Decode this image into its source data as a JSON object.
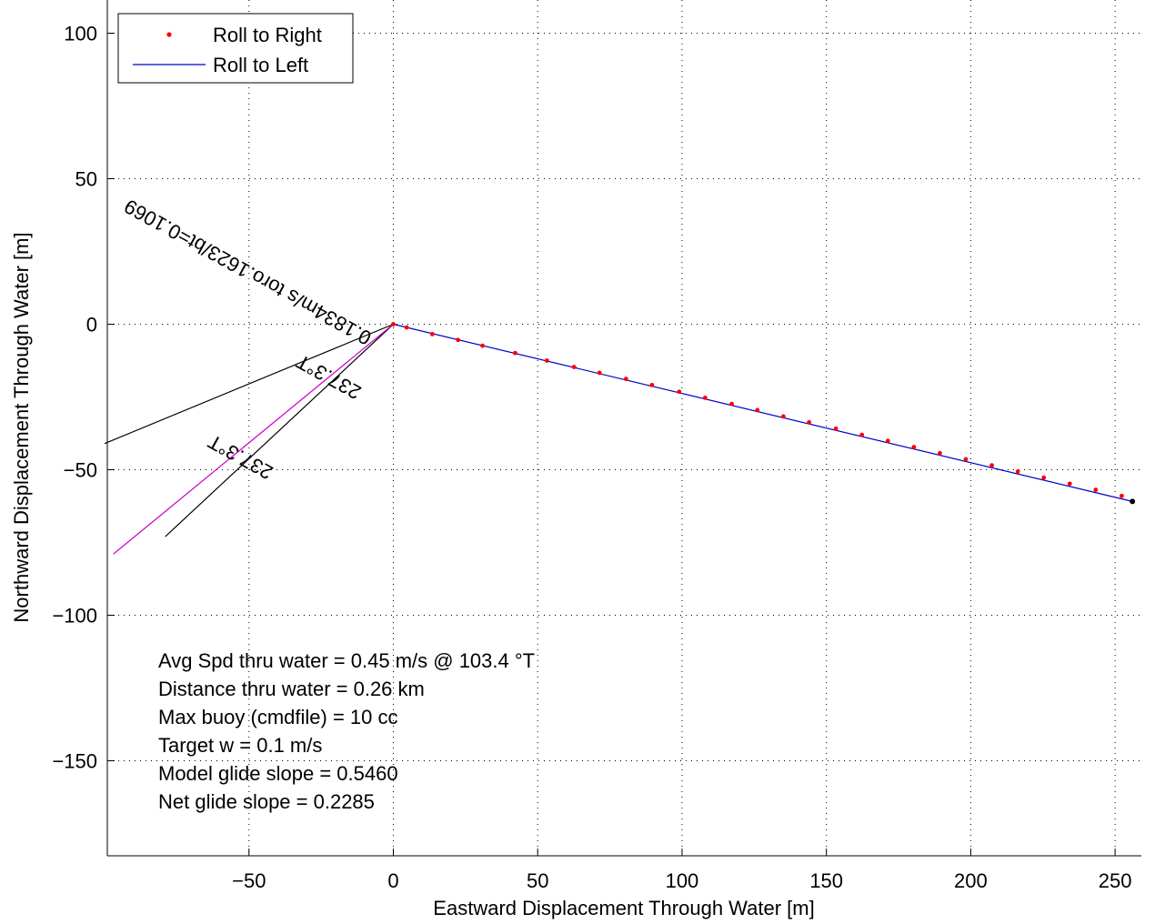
{
  "chart_data": {
    "type": "line",
    "xlabel": "Eastward Displacement Through Water [m]",
    "ylabel": "Northward Displacement Through Water [m]",
    "xlim": [
      -100,
      256
    ],
    "ylim": [
      -182,
      111
    ],
    "x_ticks": [
      -50,
      0,
      50,
      100,
      150,
      200,
      250
    ],
    "x_tick_labels": [
      "−50",
      "0",
      "50",
      "100",
      "150",
      "200",
      "250"
    ],
    "y_ticks": [
      100,
      50,
      0,
      -50,
      -100,
      -150
    ],
    "y_tick_labels": [
      "100",
      "50",
      "0",
      "−50",
      "−100",
      "−150"
    ],
    "grid": true,
    "legend_placement": "top-left",
    "series": [
      {
        "name": "Roll to Right",
        "style": "markers",
        "color": "#ff0000",
        "x": [
          0,
          4.6,
          13.5,
          22.4,
          30.9,
          42.2,
          53.2,
          62.6,
          71.4,
          80.6,
          89.6,
          99.0,
          108.0,
          117.2,
          126.1,
          135.1,
          144.0,
          153.3,
          162.3,
          171.3,
          180.3,
          189.3,
          198.3,
          207.3,
          216.3,
          225.3,
          234.3,
          243.3,
          252.3
        ],
        "y": [
          0,
          -1.1,
          -3.4,
          -5.4,
          -7.4,
          -9.9,
          -12.5,
          -14.7,
          -16.7,
          -18.8,
          -20.9,
          -23.2,
          -25.3,
          -27.4,
          -29.5,
          -31.7,
          -33.7,
          -35.9,
          -38.0,
          -40.1,
          -42.2,
          -44.3,
          -46.4,
          -48.5,
          -50.6,
          -52.7,
          -54.8,
          -56.9,
          -59.0
        ]
      },
      {
        "name": "Roll to Left",
        "style": "line",
        "color": "#0000cc",
        "x": [
          0,
          256
        ],
        "y": [
          0,
          -60.9
        ]
      }
    ],
    "endpoint": {
      "x": 256,
      "y": -60.9,
      "color": "#000000"
    },
    "current_arrow": {
      "x": [
        0,
        -97
      ],
      "y": [
        0,
        -79
      ],
      "color": "#cc00cc",
      "head_lines": [
        {
          "x": [
            0,
            -100
          ],
          "y": [
            0,
            -41
          ]
        },
        {
          "x": [
            0,
            -79
          ],
          "y": [
            0,
            -73
          ]
        }
      ]
    },
    "arrow_labels": [
      {
        "text": "0.1834m/s toro.1623/bt=0.1069",
        "angle_deg": -151
      },
      {
        "text": "237.3°T",
        "angle_deg": -151
      },
      {
        "text": "237.3°T",
        "angle_deg": -151
      }
    ],
    "annotations": [
      "Avg Spd thru water =  0.45 m/s @ 103.4   °T",
      "Distance thru water =  0.26 km",
      "Max buoy (cmdfile) = 10 cc",
      "Target w = 0.1 m/s",
      "Model glide slope = 0.5460",
      "Net glide slope = 0.2285"
    ]
  }
}
